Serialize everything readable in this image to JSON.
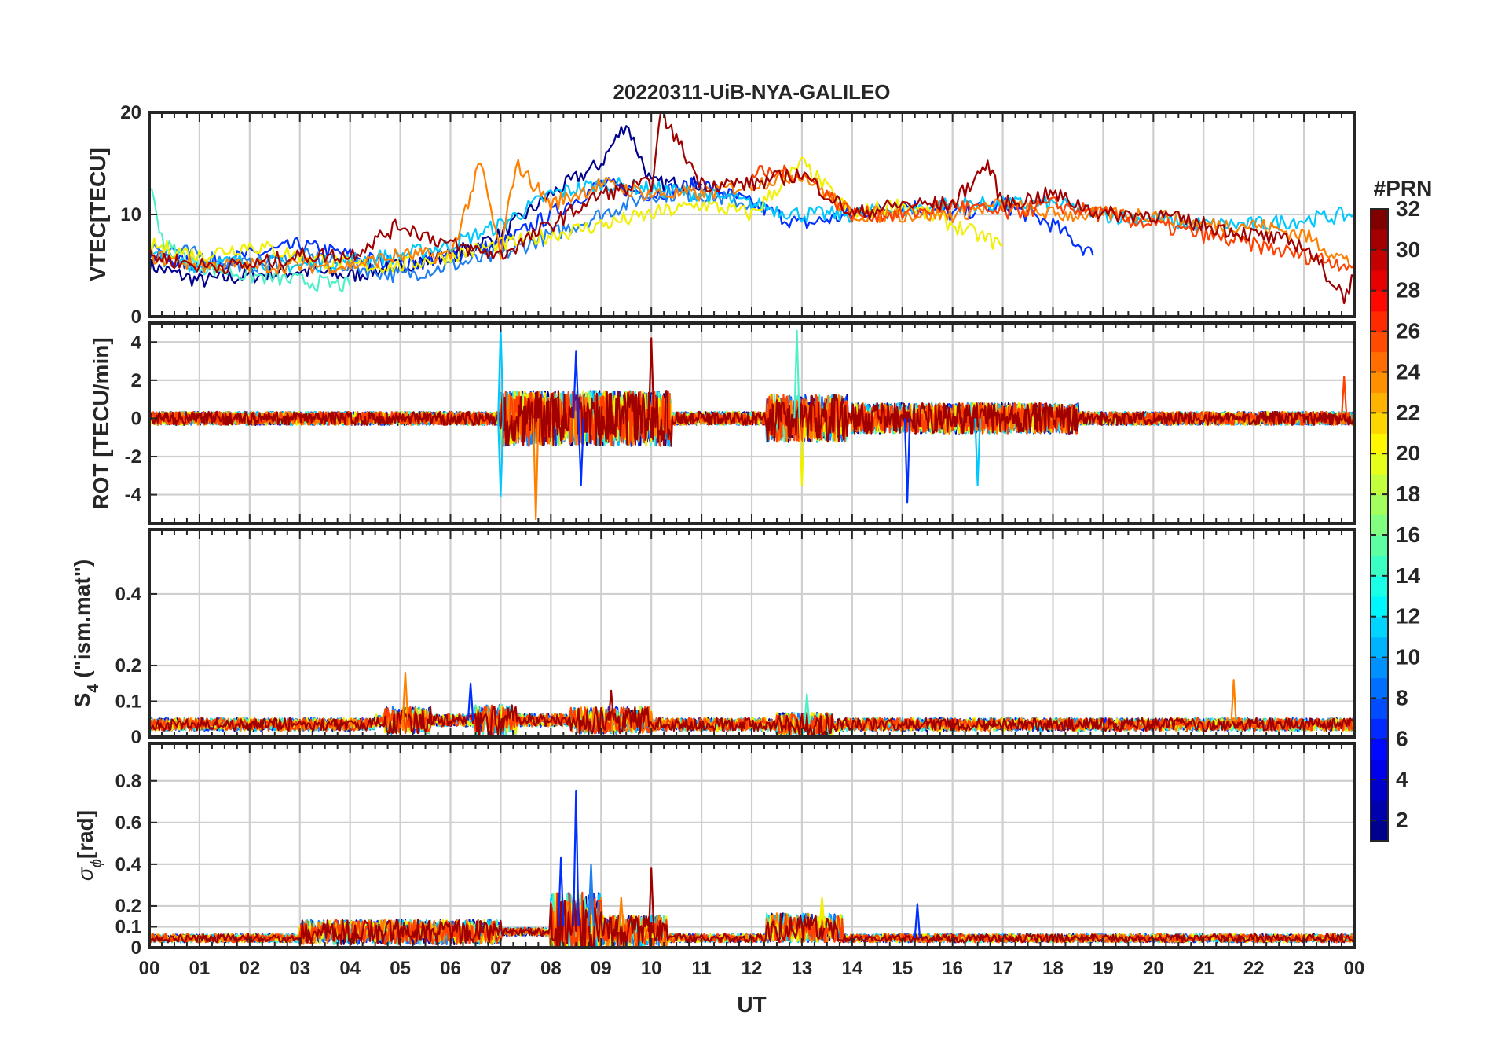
{
  "chart_data": [
    {
      "type": "line",
      "panel": "vtec",
      "title": "20220311-UiB-NYA-GALILEO",
      "ylabel": "VTEC[TECU]",
      "ylim": [
        0,
        20
      ],
      "yticks": [
        "0",
        "10",
        "20"
      ],
      "grid": true,
      "series": [
        {
          "prn": 1,
          "color": "#00008f",
          "x": [
            0,
            1,
            2,
            3,
            4,
            5,
            6,
            7,
            8,
            9,
            9.5,
            10,
            11
          ],
          "y": [
            5,
            3.5,
            4,
            4.5,
            4,
            5,
            6,
            8,
            12,
            15,
            19,
            13,
            13
          ]
        },
        {
          "prn": 4,
          "color": "#0030ff",
          "x": [
            0,
            1,
            2,
            3,
            4,
            5,
            6,
            7,
            8,
            9,
            10,
            11,
            12,
            13,
            14,
            15,
            16,
            17,
            18,
            18.8
          ],
          "y": [
            6,
            5,
            6,
            7,
            6,
            5,
            6,
            7,
            10,
            13,
            12,
            13,
            11,
            9,
            10,
            11,
            10,
            11,
            9,
            6
          ]
        },
        {
          "prn": 8,
          "color": "#1e7ff0",
          "x": [
            0,
            1,
            2,
            3,
            4,
            5,
            6,
            7,
            8,
            9,
            10,
            11,
            12
          ],
          "y": [
            7,
            6,
            5,
            6,
            5,
            4,
            5,
            6,
            8,
            10,
            12,
            12,
            11
          ]
        },
        {
          "prn": 12,
          "color": "#00c8ff",
          "x": [
            0,
            1,
            2,
            3,
            4,
            5,
            6,
            7,
            8,
            9,
            10,
            11,
            12,
            13,
            14,
            15,
            16,
            17,
            18,
            19,
            20,
            21,
            22,
            23,
            24
          ],
          "y": [
            6,
            5,
            5.5,
            5,
            5.5,
            6,
            7,
            9,
            12,
            13,
            12.5,
            12,
            11,
            10,
            10,
            10.5,
            11,
            11,
            11,
            10,
            9.5,
            9,
            9,
            9.5,
            10
          ]
        },
        {
          "prn": 15,
          "color": "#4ff0c8",
          "x": [
            0,
            0.3,
            1,
            2,
            3,
            4
          ],
          "y": [
            13,
            7,
            5,
            4,
            3.5,
            3
          ]
        },
        {
          "prn": 20,
          "color": "#f0f000",
          "x": [
            0,
            1,
            2,
            3,
            4,
            5,
            11,
            12,
            13,
            14,
            15,
            16,
            17
          ],
          "y": [
            7,
            6,
            7,
            6,
            5,
            5,
            11,
            10,
            15,
            10,
            11,
            9,
            7
          ]
        },
        {
          "prn": 24,
          "color": "#ff8000",
          "x": [
            0,
            1,
            2,
            3,
            4,
            5,
            6,
            6.6,
            7,
            7.3,
            8,
            9,
            10,
            11,
            12,
            13,
            14,
            15,
            16,
            17,
            18,
            19,
            20,
            21,
            22,
            23,
            24
          ],
          "y": [
            6,
            5,
            5,
            5,
            5,
            6,
            6,
            15,
            6,
            15,
            11,
            13,
            12,
            12,
            13,
            14,
            10,
            10,
            10,
            11,
            10,
            10,
            10,
            9,
            9,
            8,
            5
          ]
        },
        {
          "prn": 26,
          "color": "#ff4000",
          "x": [
            12,
            13,
            14,
            15,
            16,
            17,
            18,
            19,
            20,
            21,
            22,
            23,
            24
          ],
          "y": [
            14,
            14,
            10,
            10,
            11,
            10,
            11,
            10,
            9,
            8,
            7,
            6,
            5
          ]
        },
        {
          "prn": 30,
          "color": "#a00000",
          "x": [
            0,
            1,
            2,
            3,
            4,
            5,
            6,
            7,
            8,
            9,
            10,
            10.2,
            11,
            12,
            13,
            14,
            15,
            16,
            16.7,
            17,
            18,
            19,
            20,
            21,
            22,
            23,
            23.8,
            24
          ],
          "y": [
            6,
            5,
            5,
            6,
            6,
            9,
            7,
            6,
            9,
            12,
            13,
            20,
            13,
            13,
            14,
            10,
            11,
            11,
            15,
            11,
            12,
            10,
            10,
            9,
            8,
            7,
            2,
            4
          ]
        }
      ]
    },
    {
      "type": "line",
      "panel": "rot",
      "ylabel": "ROT [TECU/min]",
      "ylim": [
        -5.5,
        5
      ],
      "yticks": [
        "-4",
        "-2",
        "0",
        "2",
        "4"
      ],
      "grid": true,
      "events": [
        {
          "x": 7.0,
          "y": 4.8,
          "color": "#00c8ff"
        },
        {
          "x": 7.0,
          "y": -4.1,
          "color": "#00c8ff"
        },
        {
          "x": 7.7,
          "y": -5.3,
          "color": "#ff8000"
        },
        {
          "x": 8.5,
          "y": 3.5,
          "color": "#0030ff"
        },
        {
          "x": 8.6,
          "y": -3.5,
          "color": "#0030ff"
        },
        {
          "x": 10.0,
          "y": 4.2,
          "color": "#a00000"
        },
        {
          "x": 12.9,
          "y": 4.6,
          "color": "#4ff0c8"
        },
        {
          "x": 13.0,
          "y": -3.5,
          "color": "#f0f000"
        },
        {
          "x": 15.1,
          "y": -4.4,
          "color": "#0030ff"
        },
        {
          "x": 16.5,
          "y": -3.5,
          "color": "#00c8ff"
        },
        {
          "x": 23.8,
          "y": 2.2,
          "color": "#ff4000"
        }
      ]
    },
    {
      "type": "line",
      "panel": "s4",
      "ylabel_main": "S",
      "ylabel_sub": "4",
      "ylabel_rest": " (\"ism.mat\")",
      "ylim": [
        0,
        0.58
      ],
      "yticks": [
        "0",
        "0.1",
        "0.2",
        "0.4"
      ],
      "grid": true,
      "events": [
        {
          "x": 5.1,
          "y": 0.18,
          "color": "#ff8000"
        },
        {
          "x": 6.4,
          "y": 0.15,
          "color": "#0030ff"
        },
        {
          "x": 9.2,
          "y": 0.13,
          "color": "#a00000"
        },
        {
          "x": 13.1,
          "y": 0.12,
          "color": "#4ff0c8"
        },
        {
          "x": 21.6,
          "y": 0.16,
          "color": "#ff8000"
        }
      ]
    },
    {
      "type": "line",
      "panel": "sigma",
      "ylabel_main": "σ",
      "ylabel_sub": "ϕ",
      "ylabel_rest": "[rad]",
      "xlabel": "UT",
      "xlim": [
        0,
        24
      ],
      "xticks": [
        "00",
        "01",
        "02",
        "03",
        "04",
        "05",
        "06",
        "07",
        "08",
        "09",
        "10",
        "11",
        "12",
        "13",
        "14",
        "15",
        "16",
        "17",
        "18",
        "19",
        "20",
        "21",
        "22",
        "23",
        "00"
      ],
      "ylim": [
        0,
        0.98
      ],
      "yticks": [
        "0",
        "0.1",
        "0.2",
        "0.4",
        "0.6",
        "0.8"
      ],
      "grid": true,
      "events": [
        {
          "x": 8.5,
          "y": 0.75,
          "color": "#0030ff"
        },
        {
          "x": 8.2,
          "y": 0.43,
          "color": "#0030ff"
        },
        {
          "x": 8.8,
          "y": 0.4,
          "color": "#1e7ff0"
        },
        {
          "x": 10.0,
          "y": 0.38,
          "color": "#a00000"
        },
        {
          "x": 9.4,
          "y": 0.24,
          "color": "#ff8000"
        },
        {
          "x": 13.4,
          "y": 0.24,
          "color": "#f0f000"
        },
        {
          "x": 15.3,
          "y": 0.21,
          "color": "#0030ff"
        }
      ]
    },
    {
      "type": "heatmap",
      "panel": "colorbar",
      "title": "#PRN",
      "range": [
        1,
        32
      ],
      "ticks": [
        "2",
        "4",
        "6",
        "8",
        "10",
        "12",
        "14",
        "16",
        "18",
        "20",
        "22",
        "24",
        "26",
        "28",
        "30",
        "32"
      ]
    }
  ]
}
